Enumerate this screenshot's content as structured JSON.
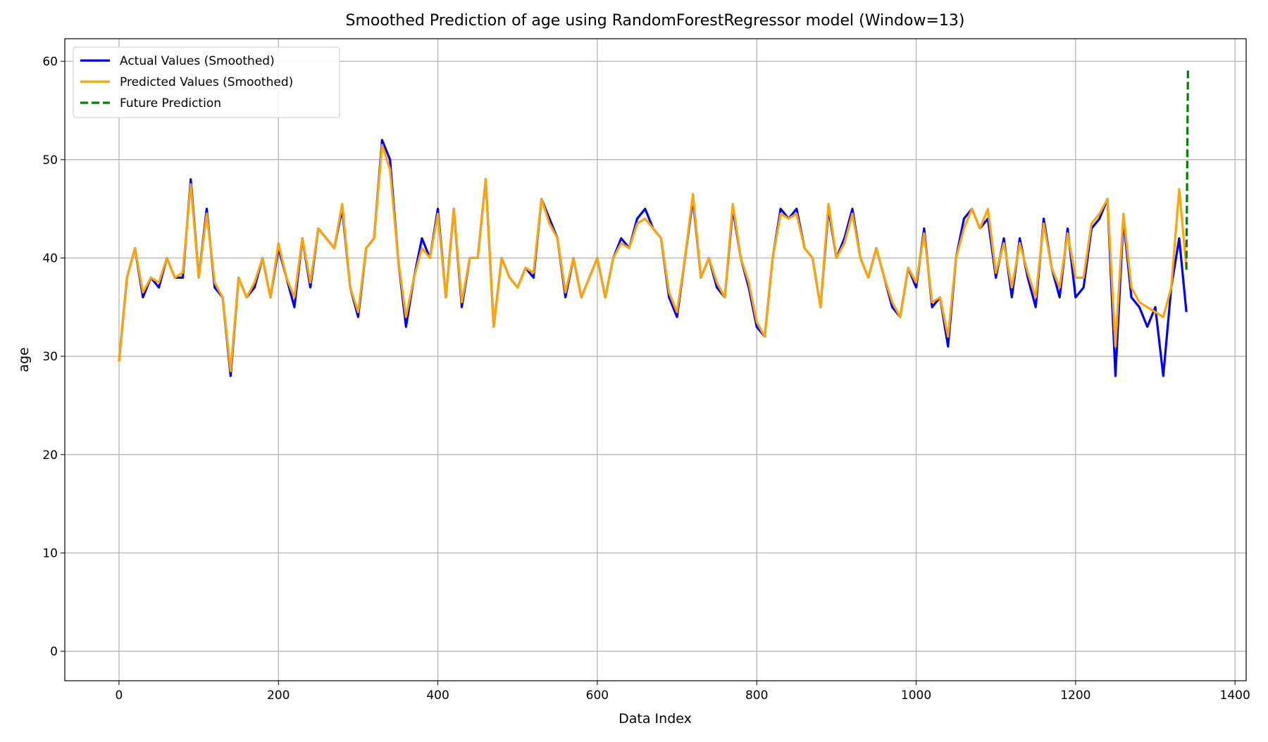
{
  "chart_data": {
    "type": "line",
    "title": "Smoothed Prediction of age using RandomForestRegressor model (Window=13)",
    "xlabel": "Data Index",
    "ylabel": "age",
    "x": [
      0,
      10,
      20,
      30,
      40,
      50,
      60,
      70,
      80,
      90,
      100,
      110,
      120,
      130,
      140,
      150,
      160,
      170,
      180,
      190,
      200,
      210,
      220,
      230,
      240,
      250,
      260,
      270,
      280,
      290,
      300,
      310,
      320,
      330,
      340,
      350,
      360,
      370,
      380,
      390,
      400,
      410,
      420,
      430,
      440,
      450,
      460,
      470,
      480,
      490,
      500,
      510,
      520,
      530,
      540,
      550,
      560,
      570,
      580,
      590,
      600,
      610,
      620,
      630,
      640,
      650,
      660,
      670,
      680,
      690,
      700,
      710,
      720,
      730,
      740,
      750,
      760,
      770,
      780,
      790,
      800,
      810,
      820,
      830,
      840,
      850,
      860,
      870,
      880,
      890,
      900,
      910,
      920,
      930,
      940,
      950,
      960,
      970,
      980,
      990,
      1000,
      1010,
      1020,
      1030,
      1040,
      1050,
      1060,
      1070,
      1080,
      1090,
      1100,
      1110,
      1120,
      1130,
      1140,
      1150,
      1160,
      1170,
      1180,
      1190,
      1200,
      1210,
      1220,
      1230,
      1240,
      1250,
      1260,
      1270,
      1280,
      1290,
      1300,
      1310,
      1320,
      1330,
      1339
    ],
    "series": [
      {
        "name": "Actual Values (Smoothed)",
        "color": "#0000ff",
        "values": [
          29.5,
          38,
          41,
          36,
          38,
          37,
          40,
          38,
          38,
          48,
          38,
          45,
          37,
          36,
          28,
          38,
          36,
          37,
          40,
          36,
          41,
          38,
          35,
          42,
          37,
          43,
          42,
          41,
          45,
          37,
          34,
          41,
          42,
          52,
          50,
          40,
          33,
          38,
          42,
          40,
          45,
          36,
          45,
          35,
          40,
          40,
          48,
          33,
          40,
          38,
          37,
          39,
          38,
          46,
          44,
          42,
          36,
          40,
          36,
          38,
          40,
          36,
          40,
          42,
          41,
          44,
          45,
          43,
          42,
          36,
          34,
          40,
          46,
          38,
          40,
          37,
          36,
          45,
          40,
          37,
          33,
          32,
          40,
          45,
          44,
          45,
          41,
          40,
          35,
          45,
          40,
          42,
          45,
          40,
          38,
          41,
          38,
          35,
          34,
          39,
          37,
          43,
          35,
          36,
          31,
          40,
          44,
          45,
          43,
          44,
          38,
          42,
          36,
          42,
          38,
          35,
          44,
          39,
          36,
          43,
          36,
          37,
          43,
          44,
          46,
          28,
          44,
          36,
          35,
          33,
          35,
          28,
          37,
          42,
          34.5
        ]
      },
      {
        "name": "Predicted Values (Smoothed)",
        "color": "#ffa500",
        "values": [
          29.5,
          38,
          41,
          36.5,
          38,
          37.5,
          40,
          38,
          38.5,
          47.5,
          38,
          44.5,
          37.5,
          36,
          28.5,
          38,
          36,
          37.5,
          40,
          36,
          41.5,
          38,
          36,
          42,
          37.5,
          43,
          42,
          41,
          45.5,
          37,
          34.5,
          41,
          42,
          51.5,
          49,
          40,
          34,
          38,
          41,
          40,
          44.5,
          36,
          45,
          35.5,
          40,
          40,
          48,
          33,
          40,
          38,
          37,
          39,
          38.5,
          46,
          43.5,
          42,
          36.5,
          40,
          36,
          38,
          40,
          36,
          40,
          41.5,
          41,
          43.5,
          44,
          43,
          42,
          36.5,
          34.5,
          40,
          46.5,
          38,
          40,
          37.5,
          36,
          45.5,
          40,
          37.5,
          33.5,
          32,
          40,
          44.5,
          44,
          44.5,
          41,
          40,
          35,
          45.5,
          40,
          41.5,
          44.5,
          40,
          38,
          41,
          38,
          35.5,
          34,
          39,
          37.5,
          42.5,
          35.5,
          36,
          32,
          40,
          43,
          45,
          43,
          45,
          38.5,
          41.5,
          37,
          41.5,
          38.5,
          36,
          43.5,
          39,
          37,
          42.5,
          38,
          38,
          43.5,
          44.5,
          46,
          31,
          44.5,
          37,
          35.5,
          35,
          34.5,
          34,
          37,
          47,
          39
        ]
      },
      {
        "name": "Future Prediction",
        "color": "#008000",
        "dashed": true,
        "x": [
          1339,
          1341
        ],
        "values": [
          38.8,
          59.3
        ]
      }
    ],
    "xlim": [
      -68,
      1414
    ],
    "ylim": [
      -3,
      62.3
    ],
    "xticks": [
      0,
      200,
      400,
      600,
      800,
      1000,
      1200,
      1400
    ],
    "yticks": [
      0,
      10,
      20,
      30,
      40,
      50,
      60
    ],
    "grid": true,
    "legend": "upper left"
  }
}
